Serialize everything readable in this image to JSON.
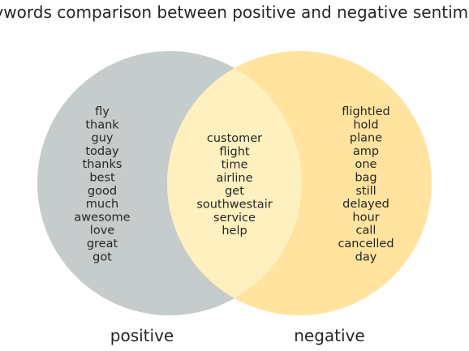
{
  "diagram": {
    "type": "venn",
    "title": "Keywords comparison between positive and negative sentiment",
    "sets": [
      {
        "id": "positive",
        "label": "positive",
        "color": "#c6cccb"
      },
      {
        "id": "negative",
        "label": "negative",
        "color": "#ffe39f"
      }
    ],
    "intersection_color": "#fff0bf",
    "regions": {
      "positive_only": [
        "fly",
        "thank",
        "guy",
        "today",
        "thanks",
        "best",
        "good",
        "much",
        "awesome",
        "love",
        "great",
        "got"
      ],
      "both": [
        "customer",
        "flight",
        "time",
        "airline",
        "get",
        "southwestair",
        "service",
        "help"
      ],
      "negative_only": [
        "flightled",
        "hold",
        "plane",
        "amp",
        "one",
        "bag",
        "still",
        "delayed",
        "hour",
        "call",
        "cancelled",
        "day"
      ]
    }
  }
}
